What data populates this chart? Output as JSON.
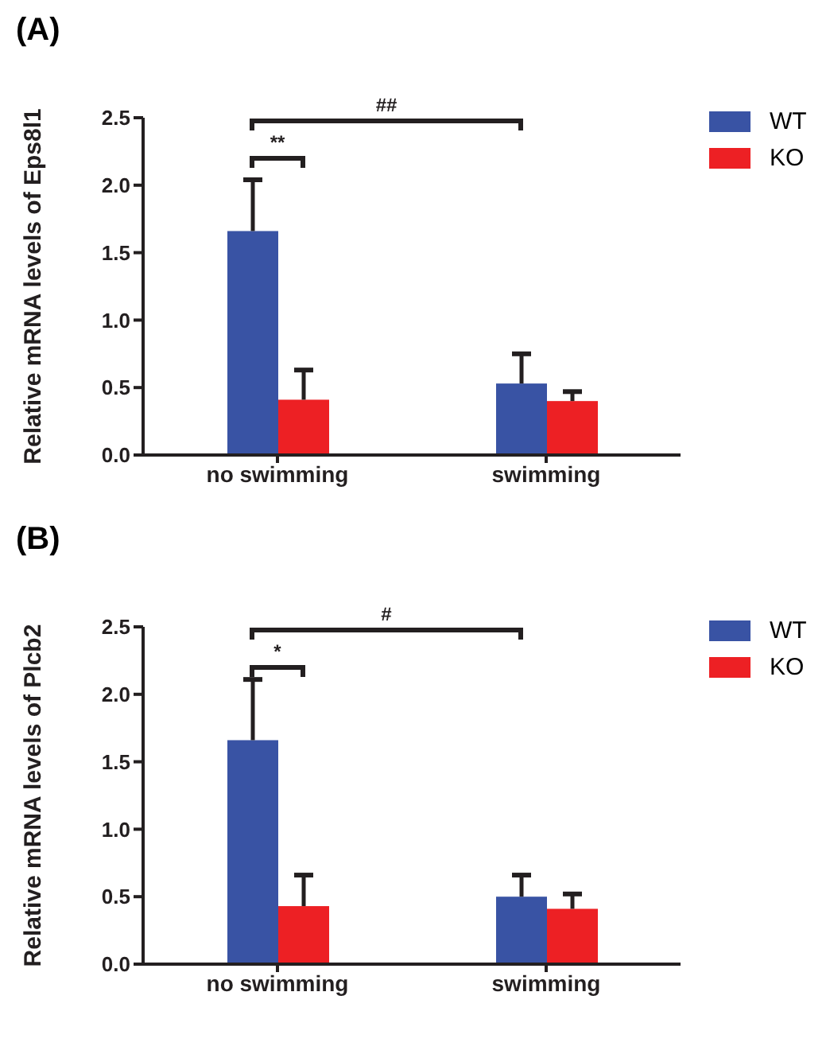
{
  "chart_data": [
    {
      "type": "bar",
      "title": "(A)",
      "ylabel": "Relative mRNA levels of Eps8l1",
      "categories": [
        "no swimming",
        "swimming"
      ],
      "series": [
        {
          "name": "WT",
          "color": "#3953a4",
          "values": [
            1.66,
            0.53
          ],
          "errors": [
            [
              1.66,
              2.04
            ],
            [
              0.53,
              0.75
            ]
          ]
        },
        {
          "name": "KO",
          "color": "#ed2024",
          "values": [
            0.41,
            0.4
          ],
          "errors": [
            [
              0.41,
              0.63
            ],
            [
              0.4,
              0.47
            ]
          ]
        }
      ],
      "ylim": [
        0,
        2.5
      ],
      "yticks": [
        {
          "value": 0,
          "label": "0.0"
        },
        0.5,
        {
          "value": 1,
          "label": "1.0"
        },
        1.5,
        {
          "value": 2,
          "label": "2.0"
        },
        2.5
      ],
      "legend": "right",
      "grid": false,
      "annotations": [
        "**",
        "##"
      ]
    },
    {
      "type": "bar",
      "title": "(B)",
      "ylabel": "Relative mRNA levels of Plcb2",
      "categories": [
        "no swimming",
        "swimming"
      ],
      "series": [
        {
          "name": "WT",
          "color": "#3953a4",
          "values": [
            1.66,
            0.5
          ],
          "errors": [
            [
              1.66,
              2.11
            ],
            [
              0.5,
              0.66
            ]
          ]
        },
        {
          "name": "KO",
          "color": "#ed2024",
          "values": [
            0.43,
            0.41
          ],
          "errors": [
            [
              0.43,
              0.66
            ],
            [
              0.41,
              0.52
            ]
          ]
        }
      ],
      "ylim": [
        0,
        2.5
      ],
      "yticks": [
        {
          "value": 0,
          "label": "0.0"
        },
        0.5,
        {
          "value": 1,
          "label": "1.0"
        },
        1.5,
        {
          "value": 2,
          "label": "2.0"
        },
        2.5
      ],
      "legend": "right",
      "grid": false,
      "annotations": [
        "*",
        "#"
      ]
    }
  ]
}
